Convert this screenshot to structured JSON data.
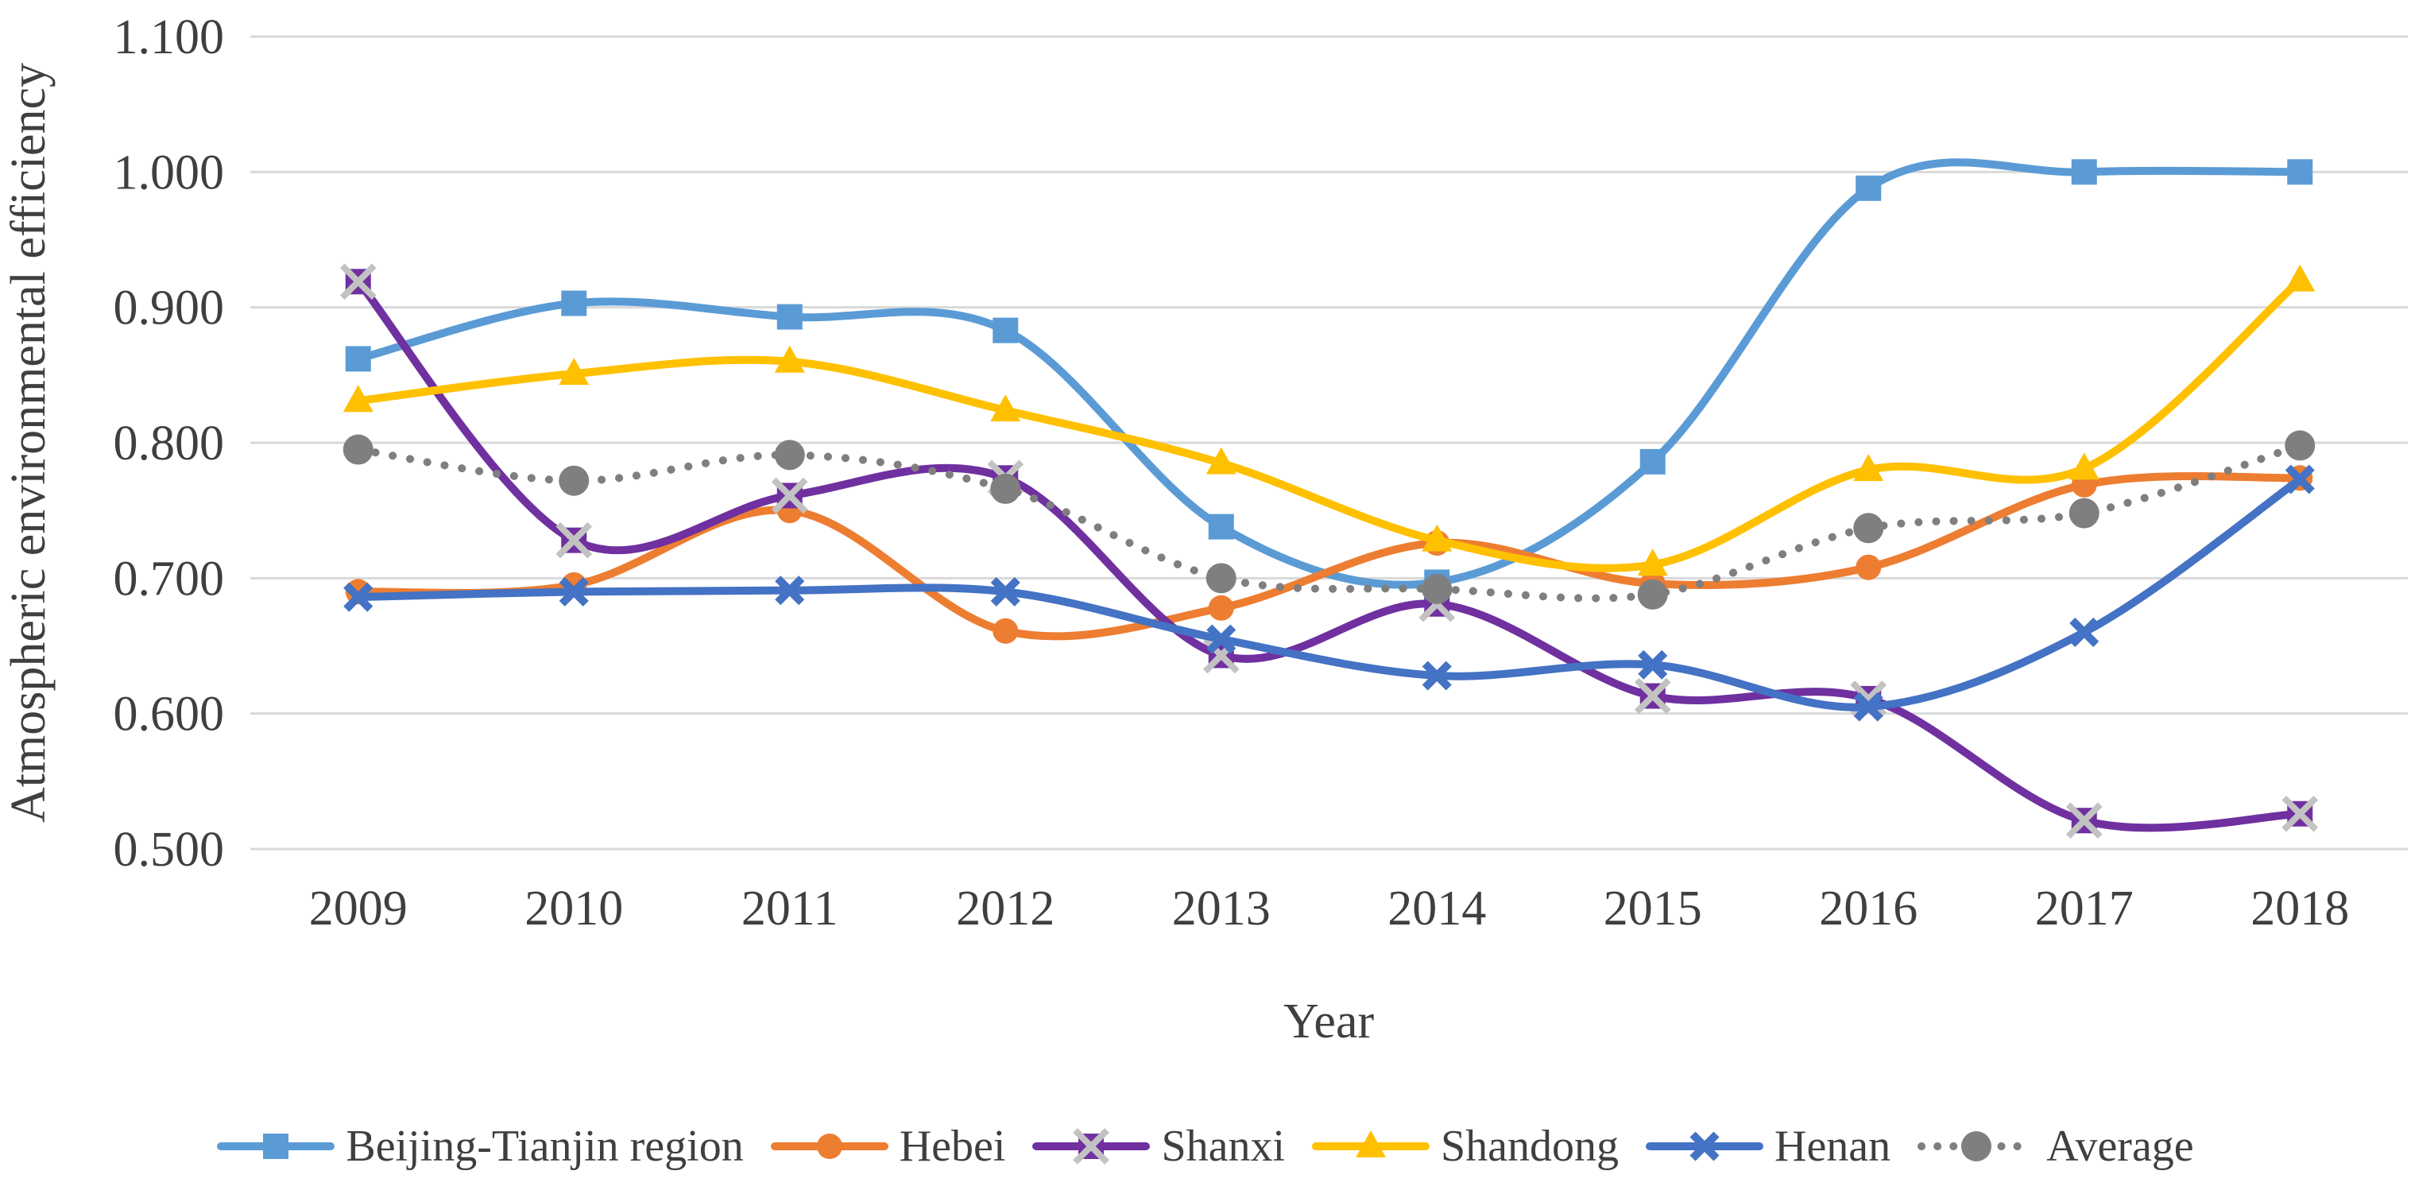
{
  "figure": {
    "background_color": "#ffffff",
    "text_color": "#3f3f3f",
    "gridline_color": "#d9d9d9"
  },
  "chart_data": {
    "type": "line",
    "title": "",
    "xlabel": "Year",
    "ylabel": "Atmospheric environmental efficiency",
    "categories": [
      "2009",
      "2010",
      "2011",
      "2012",
      "2013",
      "2014",
      "2015",
      "2016",
      "2017",
      "2018"
    ],
    "ylim": [
      0.5,
      1.1
    ],
    "y_ticks": [
      "0.500",
      "0.600",
      "0.700",
      "0.800",
      "0.900",
      "1.000",
      "1.100"
    ],
    "grid": "horizontal-only",
    "legend_position": "bottom",
    "smoothed_lines": true,
    "series": [
      {
        "name": "Beijing-Tianjin region",
        "color": "#5B9BD5",
        "marker": "square",
        "line_style": "solid",
        "values": [
          0.862,
          0.903,
          0.893,
          0.883,
          0.738,
          0.697,
          0.786,
          0.988,
          1.0,
          1.0
        ]
      },
      {
        "name": "Hebei",
        "color": "#ED7D31",
        "marker": "circle",
        "line_style": "solid",
        "values": [
          0.69,
          0.695,
          0.75,
          0.661,
          0.678,
          0.726,
          0.696,
          0.708,
          0.769,
          0.774
        ]
      },
      {
        "name": "Shanxi",
        "color": "#7030A0",
        "marker": "x-square",
        "marker_x_color": "#C2C2C2",
        "line_style": "solid",
        "values": [
          0.919,
          0.728,
          0.761,
          0.774,
          0.643,
          0.681,
          0.613,
          0.611,
          0.521,
          0.526
        ]
      },
      {
        "name": "Shandong",
        "color": "#FFC000",
        "marker": "triangle",
        "line_style": "solid",
        "values": [
          0.831,
          0.851,
          0.86,
          0.824,
          0.785,
          0.728,
          0.71,
          0.78,
          0.781,
          0.92
        ]
      },
      {
        "name": "Henan",
        "color": "#4472C4",
        "marker": "x",
        "line_style": "solid",
        "values": [
          0.686,
          0.69,
          0.691,
          0.69,
          0.655,
          0.628,
          0.636,
          0.605,
          0.66,
          0.773
        ]
      },
      {
        "name": "Average",
        "color": "#7F7F7F",
        "marker": "dot-circle",
        "line_style": "dotted",
        "values": [
          0.795,
          0.772,
          0.791,
          0.766,
          0.7,
          0.692,
          0.688,
          0.737,
          0.748,
          0.798
        ]
      }
    ]
  }
}
